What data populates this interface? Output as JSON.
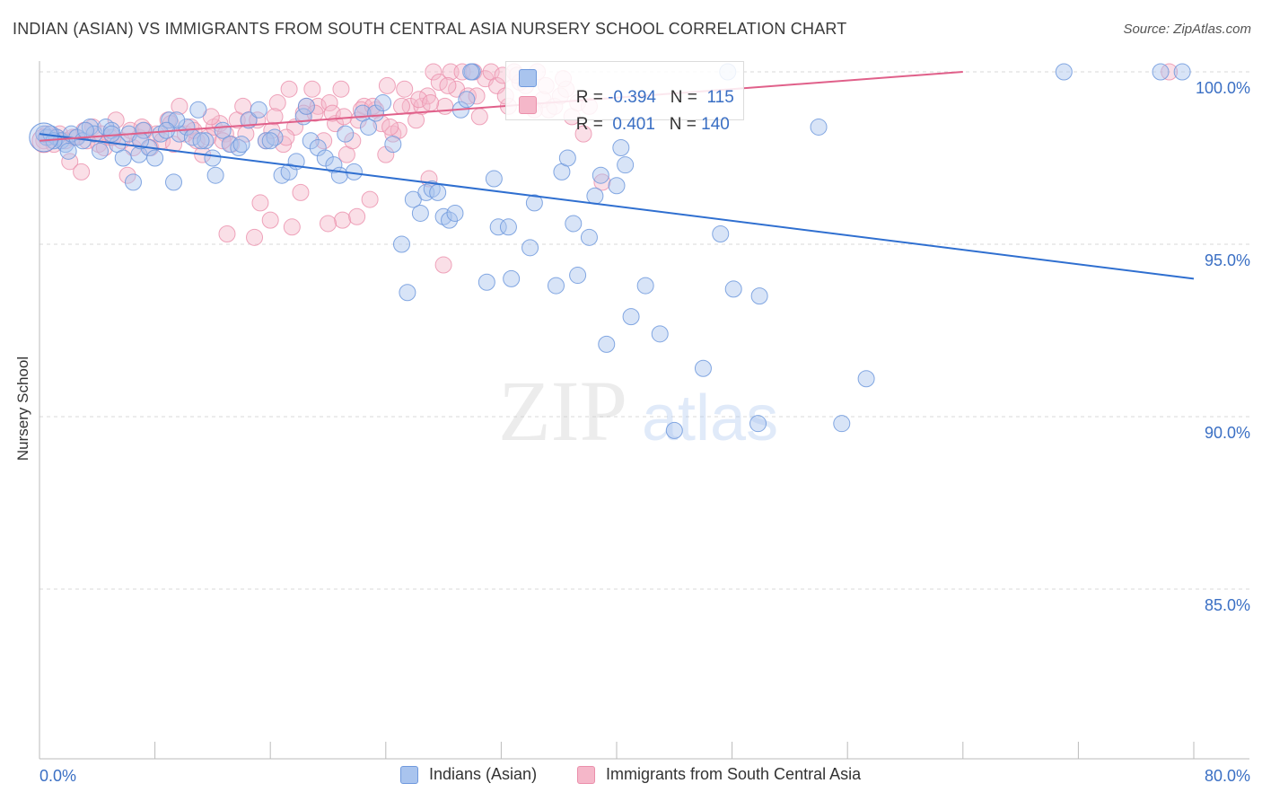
{
  "header": {
    "title": "INDIAN (ASIAN) VS IMMIGRANTS FROM SOUTH CENTRAL ASIA NURSERY SCHOOL CORRELATION CHART",
    "source": "Source: ZipAtlas.com"
  },
  "watermark": {
    "zip": "ZIP",
    "atlas": "atlas"
  },
  "stats": {
    "blue": {
      "r_label": "R =",
      "r_value": "-0.394",
      "n_label": "N =",
      "n_value": "115"
    },
    "pink": {
      "r_label": "R =",
      "r_value": "0.401",
      "n_label": "N =",
      "n_value": "140"
    }
  },
  "colors": {
    "blue_fill": "#a9c4ee",
    "blue_stroke": "#6f99dd",
    "blue_line": "#2f6fd0",
    "pink_fill": "#f5b7c9",
    "pink_stroke": "#eb8fab",
    "pink_line": "#e0608a",
    "tick_text": "#3a6fc4",
    "grid": "#d9d9d9"
  },
  "chart_data": {
    "type": "scatter",
    "title": "INDIAN (ASIAN) VS IMMIGRANTS FROM SOUTH CENTRAL ASIA NURSERY SCHOOL CORRELATION CHART",
    "xlabel": "",
    "ylabel": "Nursery School",
    "xlim": [
      0,
      80
    ],
    "ylim": [
      80.5,
      100.7
    ],
    "x_tick_labels": [
      "0.0%",
      "80.0%"
    ],
    "y_ticks": [
      100,
      95,
      90,
      85
    ],
    "y_tick_labels": [
      "100.0%",
      "95.0%",
      "90.0%",
      "85.0%"
    ],
    "grid": "horizontal dashed",
    "legend_position": "bottom",
    "series": [
      {
        "name": "Indians (Asian)",
        "color": "#6f99dd",
        "trend": {
          "x": [
            0,
            80
          ],
          "y": [
            98.2,
            94.0
          ]
        },
        "points": [
          [
            0.3,
            98.2
          ],
          [
            0.5,
            98.1
          ],
          [
            0.8,
            98.2
          ],
          [
            1.2,
            98.1
          ],
          [
            1.5,
            98.0
          ],
          [
            1.8,
            97.9
          ],
          [
            2.2,
            98.2
          ],
          [
            2.6,
            98.1
          ],
          [
            3.0,
            98.0
          ],
          [
            3.5,
            98.4
          ],
          [
            3.8,
            98.2
          ],
          [
            4.2,
            97.7
          ],
          [
            4.6,
            98.4
          ],
          [
            5.0,
            98.3
          ],
          [
            5.4,
            97.9
          ],
          [
            5.8,
            97.5
          ],
          [
            6.2,
            98.2
          ],
          [
            6.5,
            96.8
          ],
          [
            6.9,
            97.6
          ],
          [
            7.2,
            98.3
          ],
          [
            7.6,
            97.8
          ],
          [
            8.0,
            97.5
          ],
          [
            8.4,
            98.2
          ],
          [
            9.0,
            98.6
          ],
          [
            9.3,
            96.8
          ],
          [
            9.7,
            98.2
          ],
          [
            10.2,
            98.4
          ],
          [
            10.6,
            98.1
          ],
          [
            11.0,
            98.9
          ],
          [
            11.5,
            98.0
          ],
          [
            12.2,
            97.0
          ],
          [
            12.7,
            98.3
          ],
          [
            13.2,
            97.9
          ],
          [
            13.8,
            97.8
          ],
          [
            14.5,
            98.6
          ],
          [
            15.2,
            98.9
          ],
          [
            15.7,
            98.0
          ],
          [
            16.3,
            98.1
          ],
          [
            16.8,
            97.0
          ],
          [
            17.3,
            97.1
          ],
          [
            17.8,
            97.4
          ],
          [
            18.3,
            98.7
          ],
          [
            18.8,
            98.0
          ],
          [
            19.3,
            97.8
          ],
          [
            19.8,
            97.5
          ],
          [
            20.4,
            97.3
          ],
          [
            20.8,
            97.0
          ],
          [
            21.2,
            98.2
          ],
          [
            21.8,
            97.1
          ],
          [
            22.4,
            98.8
          ],
          [
            22.8,
            98.4
          ],
          [
            23.3,
            98.8
          ],
          [
            23.8,
            99.1
          ],
          [
            24.5,
            97.9
          ],
          [
            25.1,
            95.0
          ],
          [
            25.5,
            93.6
          ],
          [
            25.9,
            96.3
          ],
          [
            26.4,
            95.9
          ],
          [
            26.8,
            96.5
          ],
          [
            27.2,
            96.6
          ],
          [
            27.6,
            96.5
          ],
          [
            28.0,
            95.8
          ],
          [
            28.4,
            95.7
          ],
          [
            28.8,
            95.9
          ],
          [
            29.2,
            98.9
          ],
          [
            29.6,
            99.2
          ],
          [
            30.0,
            100.0
          ],
          [
            31.0,
            93.9
          ],
          [
            31.5,
            96.9
          ],
          [
            31.8,
            95.5
          ],
          [
            32.5,
            95.5
          ],
          [
            32.7,
            94.0
          ],
          [
            34.0,
            94.9
          ],
          [
            34.3,
            96.2
          ],
          [
            35.8,
            93.8
          ],
          [
            36.2,
            97.1
          ],
          [
            36.6,
            97.5
          ],
          [
            37.0,
            95.6
          ],
          [
            37.3,
            94.1
          ],
          [
            38.1,
            95.2
          ],
          [
            38.5,
            96.4
          ],
          [
            38.9,
            97.0
          ],
          [
            39.3,
            92.1
          ],
          [
            40.0,
            96.7
          ],
          [
            40.3,
            97.8
          ],
          [
            40.6,
            97.3
          ],
          [
            41.0,
            92.9
          ],
          [
            42.0,
            93.8
          ],
          [
            43.0,
            92.4
          ],
          [
            44.0,
            89.6
          ],
          [
            46.0,
            91.4
          ],
          [
            47.2,
            95.3
          ],
          [
            48.1,
            93.7
          ],
          [
            49.8,
            89.8
          ],
          [
            49.9,
            93.5
          ],
          [
            54.0,
            98.4
          ],
          [
            55.6,
            89.8
          ],
          [
            57.3,
            91.1
          ],
          [
            71.0,
            100.0
          ],
          [
            77.7,
            100.0
          ],
          [
            79.2,
            100.0
          ],
          [
            47.7,
            100.0
          ],
          [
            29.9,
            100.0
          ],
          [
            2.0,
            97.7
          ],
          [
            9.5,
            98.6
          ],
          [
            12.0,
            97.5
          ],
          [
            14.0,
            97.9
          ],
          [
            16.0,
            98.0
          ],
          [
            18.5,
            99.0
          ],
          [
            5.0,
            98.2
          ],
          [
            3.2,
            98.3
          ],
          [
            1.0,
            98.0
          ],
          [
            7.0,
            98.0
          ],
          [
            8.8,
            98.3
          ],
          [
            11.2,
            98.0
          ]
        ]
      },
      {
        "name": "Immigrants from South Central Asia",
        "color": "#eb8fab",
        "trend": {
          "x": [
            0,
            64
          ],
          "y": [
            98.0,
            100.0
          ]
        },
        "points": [
          [
            0.3,
            98.0
          ],
          [
            0.7,
            98.1
          ],
          [
            1.0,
            97.9
          ],
          [
            1.4,
            98.2
          ],
          [
            1.8,
            98.0
          ],
          [
            2.1,
            97.4
          ],
          [
            2.5,
            98.1
          ],
          [
            2.9,
            97.1
          ],
          [
            3.3,
            98.0
          ],
          [
            3.7,
            98.4
          ],
          [
            4.1,
            97.9
          ],
          [
            4.5,
            97.8
          ],
          [
            4.9,
            98.1
          ],
          [
            5.3,
            98.6
          ],
          [
            5.7,
            98.0
          ],
          [
            6.1,
            97.0
          ],
          [
            6.5,
            97.8
          ],
          [
            6.9,
            98.1
          ],
          [
            7.3,
            98.3
          ],
          [
            7.7,
            97.8
          ],
          [
            8.1,
            98.2
          ],
          [
            8.5,
            98.0
          ],
          [
            8.9,
            98.6
          ],
          [
            9.3,
            97.9
          ],
          [
            9.7,
            99.0
          ],
          [
            10.1,
            98.2
          ],
          [
            10.5,
            98.4
          ],
          [
            10.9,
            98.0
          ],
          [
            11.3,
            97.6
          ],
          [
            11.7,
            98.1
          ],
          [
            12.1,
            98.4
          ],
          [
            12.5,
            98.5
          ],
          [
            12.9,
            98.2
          ],
          [
            13.3,
            97.9
          ],
          [
            13.7,
            98.6
          ],
          [
            14.1,
            99.0
          ],
          [
            14.5,
            98.6
          ],
          [
            14.9,
            95.2
          ],
          [
            15.3,
            96.2
          ],
          [
            15.7,
            98.0
          ],
          [
            16.1,
            98.3
          ],
          [
            16.5,
            99.1
          ],
          [
            16.9,
            97.9
          ],
          [
            17.3,
            99.5
          ],
          [
            17.7,
            98.4
          ],
          [
            18.1,
            96.5
          ],
          [
            18.5,
            99.0
          ],
          [
            18.9,
            99.5
          ],
          [
            19.3,
            99.0
          ],
          [
            19.7,
            98.0
          ],
          [
            20.1,
            99.1
          ],
          [
            20.5,
            98.5
          ],
          [
            20.9,
            99.5
          ],
          [
            21.3,
            97.6
          ],
          [
            21.7,
            98.0
          ],
          [
            22.1,
            98.6
          ],
          [
            22.5,
            99.0
          ],
          [
            22.9,
            96.3
          ],
          [
            23.3,
            98.9
          ],
          [
            23.7,
            98.5
          ],
          [
            24.1,
            99.6
          ],
          [
            24.5,
            98.2
          ],
          [
            24.9,
            98.3
          ],
          [
            25.3,
            99.5
          ],
          [
            25.7,
            99.0
          ],
          [
            26.1,
            98.6
          ],
          [
            26.5,
            99.0
          ],
          [
            26.9,
            99.3
          ],
          [
            27.3,
            100.0
          ],
          [
            27.7,
            99.7
          ],
          [
            28.1,
            99.0
          ],
          [
            28.5,
            100.0
          ],
          [
            28.9,
            99.5
          ],
          [
            29.3,
            100.0
          ],
          [
            29.7,
            99.3
          ],
          [
            30.1,
            100.0
          ],
          [
            30.5,
            98.7
          ],
          [
            30.9,
            99.8
          ],
          [
            31.3,
            100.0
          ],
          [
            31.7,
            99.6
          ],
          [
            32.1,
            99.9
          ],
          [
            32.5,
            99.0
          ],
          [
            32.9,
            100.0
          ],
          [
            33.3,
            99.7
          ],
          [
            33.7,
            99.6
          ],
          [
            34.1,
            99.0
          ],
          [
            34.5,
            100.0
          ],
          [
            34.9,
            99.2
          ],
          [
            35.3,
            98.9
          ],
          [
            35.7,
            99.0
          ],
          [
            36.1,
            99.3
          ],
          [
            36.5,
            99.5
          ],
          [
            36.9,
            98.7
          ],
          [
            37.3,
            99.1
          ],
          [
            37.7,
            98.2
          ],
          [
            38.1,
            99.0
          ],
          [
            13.0,
            95.3
          ],
          [
            16.0,
            95.7
          ],
          [
            21.0,
            95.7
          ],
          [
            28.0,
            94.4
          ],
          [
            24.0,
            97.6
          ],
          [
            27.0,
            96.9
          ],
          [
            0.5,
            98.2
          ],
          [
            1.2,
            98.1
          ],
          [
            2.3,
            98.1
          ],
          [
            3.1,
            98.3
          ],
          [
            4.3,
            98.2
          ],
          [
            5.1,
            98.1
          ],
          [
            6.3,
            98.3
          ],
          [
            7.1,
            98.4
          ],
          [
            9.1,
            98.5
          ],
          [
            10.7,
            98.3
          ],
          [
            11.9,
            98.7
          ],
          [
            12.7,
            98.0
          ],
          [
            14.3,
            98.2
          ],
          [
            15.1,
            98.6
          ],
          [
            16.3,
            98.7
          ],
          [
            17.1,
            98.1
          ],
          [
            18.3,
            98.8
          ],
          [
            19.1,
            98.8
          ],
          [
            20.3,
            98.8
          ],
          [
            21.1,
            98.7
          ],
          [
            22.3,
            98.9
          ],
          [
            23.1,
            99.0
          ],
          [
            24.3,
            98.4
          ],
          [
            25.1,
            99.0
          ],
          [
            26.3,
            99.2
          ],
          [
            27.1,
            99.1
          ],
          [
            28.3,
            99.6
          ],
          [
            30.3,
            99.3
          ],
          [
            32.3,
            99.3
          ],
          [
            33.1,
            99.9
          ],
          [
            34.3,
            98.9
          ],
          [
            35.1,
            99.6
          ],
          [
            36.3,
            99.8
          ],
          [
            39.0,
            96.8
          ],
          [
            22.0,
            95.8
          ],
          [
            17.5,
            95.5
          ],
          [
            20.0,
            95.6
          ],
          [
            78.3,
            100.0
          ]
        ]
      }
    ]
  },
  "legend": {
    "blue_label": "Indians (Asian)",
    "pink_label": "Immigrants from South Central Asia"
  }
}
